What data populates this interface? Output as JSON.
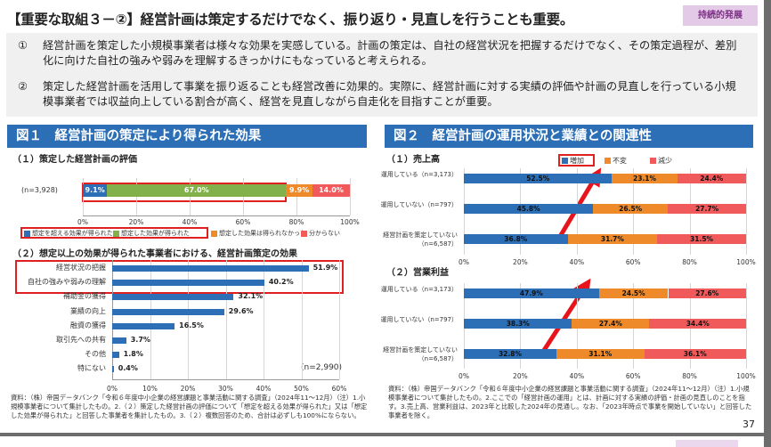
{
  "title": "【重要な取組３－②】経営計画は策定するだけでなく、振り返り・見直しを行うことも重要。",
  "badge": "持続的発展",
  "bullets": [
    {
      "num": "①",
      "text": "経営計画を策定した小規模事業者は様々な効果を実感している。計画の策定は、自社の経営状況を把握するだけでなく、その策定過程が、差別化に向けた自社の強みや弱みを理解するきっかけにもなっていると考えられる。"
    },
    {
      "num": "②",
      "text": "策定した経営計画を活用して事業を振り返ることも経営改善に効果的。実際に、経営計画に対する実績の評価や計画の見直しを行っている小規模事業者では収益向上している割合が高く、経営を見直しながら自走化を目指すことが重要。"
    }
  ],
  "fig1": {
    "header": "図１　経営計画の策定により得られた効果",
    "sub1": "（１）策定した経営計画の評価",
    "sub2": "（２）想定以上の効果が得られた事業者における、経営計画策定の効果",
    "n1": "(n=3,928)",
    "n2": "(n=2,990)",
    "note": "資料：（株）帝国データバンク「令和６年度中小企業の経営課題と事業活動に関する調査」（2024年11～12月）（注）1.小規模事業者について集計したもの。2.（２）策定した経営計画の評価について「想定を超える効果が得られた」又は「想定した効果が得られた」と回答した事業者を集計したもの。3.（２）複数回答のため、合計は必ずしも100%にならない。"
  },
  "fig2": {
    "header": "図２　経営計画の運用状況と業績との関連性",
    "sub1": "（１）売上高",
    "sub2": "（２）営業利益",
    "note": "資料：（株）帝国データバンク「令和６年度中小企業の経営課題と事業活動に関する調査」（2024年11～12月）（注）1.小規模事業者について集計したもの。2.ここでの「経営計画の運用」とは、計画に対する実績の評価・計画の見直しのことを指す。3.売上高、営業利益は、2023年と比較した2024年の見通し。なお、「2023年時点で事業を開始していない」と回答した事業者を除く。"
  },
  "page_number": "37",
  "colors": {
    "blue": "#2c6fb6",
    "green": "#82b04a",
    "orange": "#ee8a2a",
    "red": "#f05a5a",
    "highlight": "#e02020"
  },
  "chart_data": [
    {
      "type": "bar",
      "orientation": "horizontal-stacked",
      "categories": [
        "(n=3,928)"
      ],
      "series": [
        {
          "name": "想定を超える効果が得られた",
          "values": [
            9.1
          ],
          "color": "#2c6fb6"
        },
        {
          "name": "想定した効果が得られた",
          "values": [
            67.0
          ],
          "color": "#82b04a"
        },
        {
          "name": "想定した効果は得られなかった",
          "values": [
            9.9
          ],
          "color": "#ee8a2a"
        },
        {
          "name": "分からない",
          "values": [
            14.0
          ],
          "color": "#f05a5a"
        }
      ],
      "xticks": [
        "0%",
        "20%",
        "40%",
        "60%",
        "80%",
        "100%"
      ],
      "xlim": [
        0,
        100
      ]
    },
    {
      "type": "bar",
      "orientation": "horizontal",
      "categories": [
        "経営状況の把握",
        "自社の強みや弱みの理解",
        "補助金の獲得",
        "業績の向上",
        "融資の獲得",
        "取引先への共有",
        "その他",
        "特にない"
      ],
      "values": [
        51.9,
        40.2,
        32.1,
        29.6,
        16.5,
        3.7,
        1.8,
        0.4
      ],
      "labels": [
        "51.9%",
        "40.2%",
        "32.1%",
        "29.6%",
        "16.5%",
        "3.7%",
        "1.8%",
        "0.4%"
      ],
      "xticks": [
        "0%",
        "10%",
        "20%",
        "30%",
        "40%",
        "50%",
        "60%"
      ],
      "xlim": [
        0,
        60
      ]
    },
    {
      "type": "bar",
      "orientation": "horizontal-stacked",
      "legend": [
        {
          "name": "増加",
          "color": "#2c6fb6"
        },
        {
          "name": "不変",
          "color": "#ee8a2a"
        },
        {
          "name": "減少",
          "color": "#f05a5a"
        }
      ],
      "categories": [
        "運用している（n=3,173）",
        "運用していない（n=797）",
        "経営計画を策定していない（n=6,587）"
      ],
      "series": [
        {
          "name": "増加",
          "values": [
            52.5,
            45.8,
            36.8
          ]
        },
        {
          "name": "不変",
          "values": [
            23.1,
            26.5,
            31.7
          ]
        },
        {
          "name": "減少",
          "values": [
            24.4,
            27.7,
            31.5
          ]
        }
      ],
      "xticks": [
        "0%",
        "20%",
        "40%",
        "60%",
        "80%",
        "100%"
      ],
      "xlim": [
        0,
        100
      ]
    },
    {
      "type": "bar",
      "orientation": "horizontal-stacked",
      "categories": [
        "運用している（n=3,173）",
        "運用していない（n=797）",
        "経営計画を策定していない（n=6,587）"
      ],
      "series": [
        {
          "name": "増加",
          "values": [
            47.9,
            38.3,
            32.8
          ]
        },
        {
          "name": "不変",
          "values": [
            24.5,
            27.4,
            31.1
          ]
        },
        {
          "name": "減少",
          "values": [
            27.6,
            34.4,
            36.1
          ]
        }
      ],
      "xticks": [
        "0%",
        "20%",
        "40%",
        "60%",
        "80%",
        "100%"
      ],
      "xlim": [
        0,
        100
      ]
    }
  ]
}
